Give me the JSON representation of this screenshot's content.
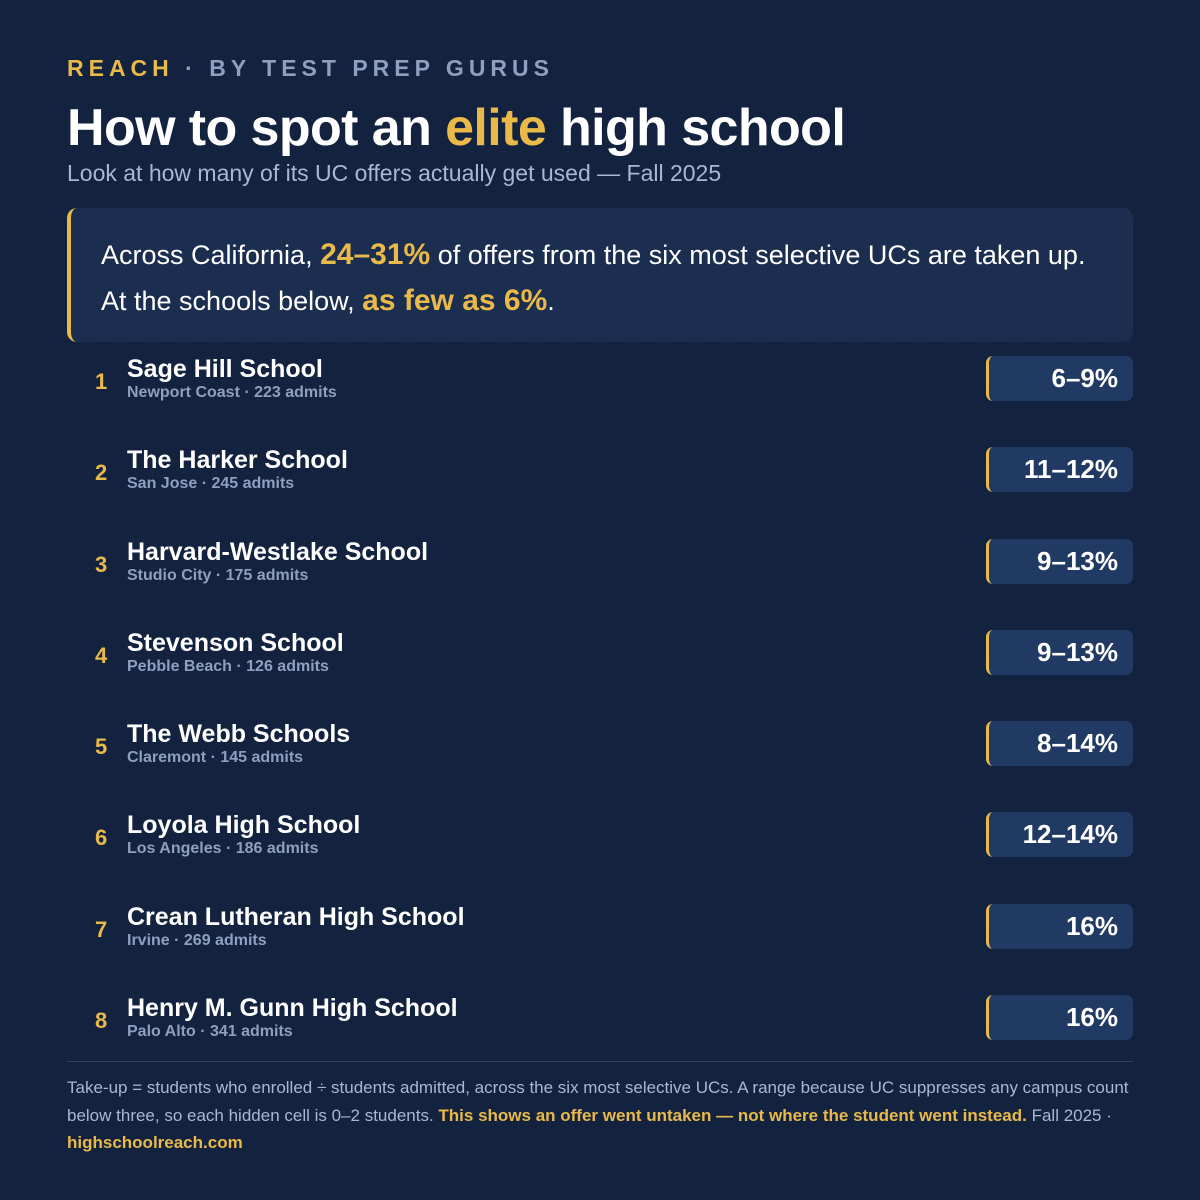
{
  "brand": {
    "name": "REACH",
    "separator": " · ",
    "tagline": "BY TEST PREP GURUS"
  },
  "header": {
    "title_before": "How to spot an ",
    "title_accent": "elite",
    "title_after": " high school",
    "subtitle": "Look at how many of its UC offers actually get used — Fall 2025"
  },
  "callout": {
    "part1": "Across California, ",
    "highlight1": "24–31%",
    "part2": " of offers from the six most selective UCs are taken up. At the schools below, ",
    "highlight2": "as few as 6%",
    "part3": "."
  },
  "schools": [
    {
      "rank": "1",
      "name": "Sage Hill School",
      "meta": "Newport Coast · 223 admits",
      "takeup": "6–9%"
    },
    {
      "rank": "2",
      "name": "The Harker School",
      "meta": "San Jose · 245 admits",
      "takeup": "11–12%"
    },
    {
      "rank": "3",
      "name": "Harvard-Westlake School",
      "meta": "Studio City · 175 admits",
      "takeup": "9–13%"
    },
    {
      "rank": "4",
      "name": "Stevenson School",
      "meta": "Pebble Beach · 126 admits",
      "takeup": "9–13%"
    },
    {
      "rank": "5",
      "name": "The Webb Schools",
      "meta": "Claremont · 145 admits",
      "takeup": "8–14%"
    },
    {
      "rank": "6",
      "name": "Loyola High School",
      "meta": "Los Angeles · 186 admits",
      "takeup": "12–14%"
    },
    {
      "rank": "7",
      "name": "Crean Lutheran High School",
      "meta": "Irvine · 269 admits",
      "takeup": "16%"
    },
    {
      "rank": "8",
      "name": "Henry M. Gunn High School",
      "meta": "Palo Alto · 341 admits",
      "takeup": "16%"
    }
  ],
  "footnote": {
    "text": "Take-up = students who enrolled ÷ students admitted, across the six most selective UCs. A range because UC suppresses any campus count below three, so each hidden cell is 0–2 students. ",
    "highlight": "This shows an offer went untaken — not where the student went instead.",
    "suffix": " Fall 2025 · ",
    "link": "highschoolreach.com"
  },
  "colors": {
    "background": "#13233f",
    "accent": "#e9b949",
    "card": "#1b2e4f",
    "badge": "#213a63",
    "muted_text": "#a9b7d1"
  }
}
